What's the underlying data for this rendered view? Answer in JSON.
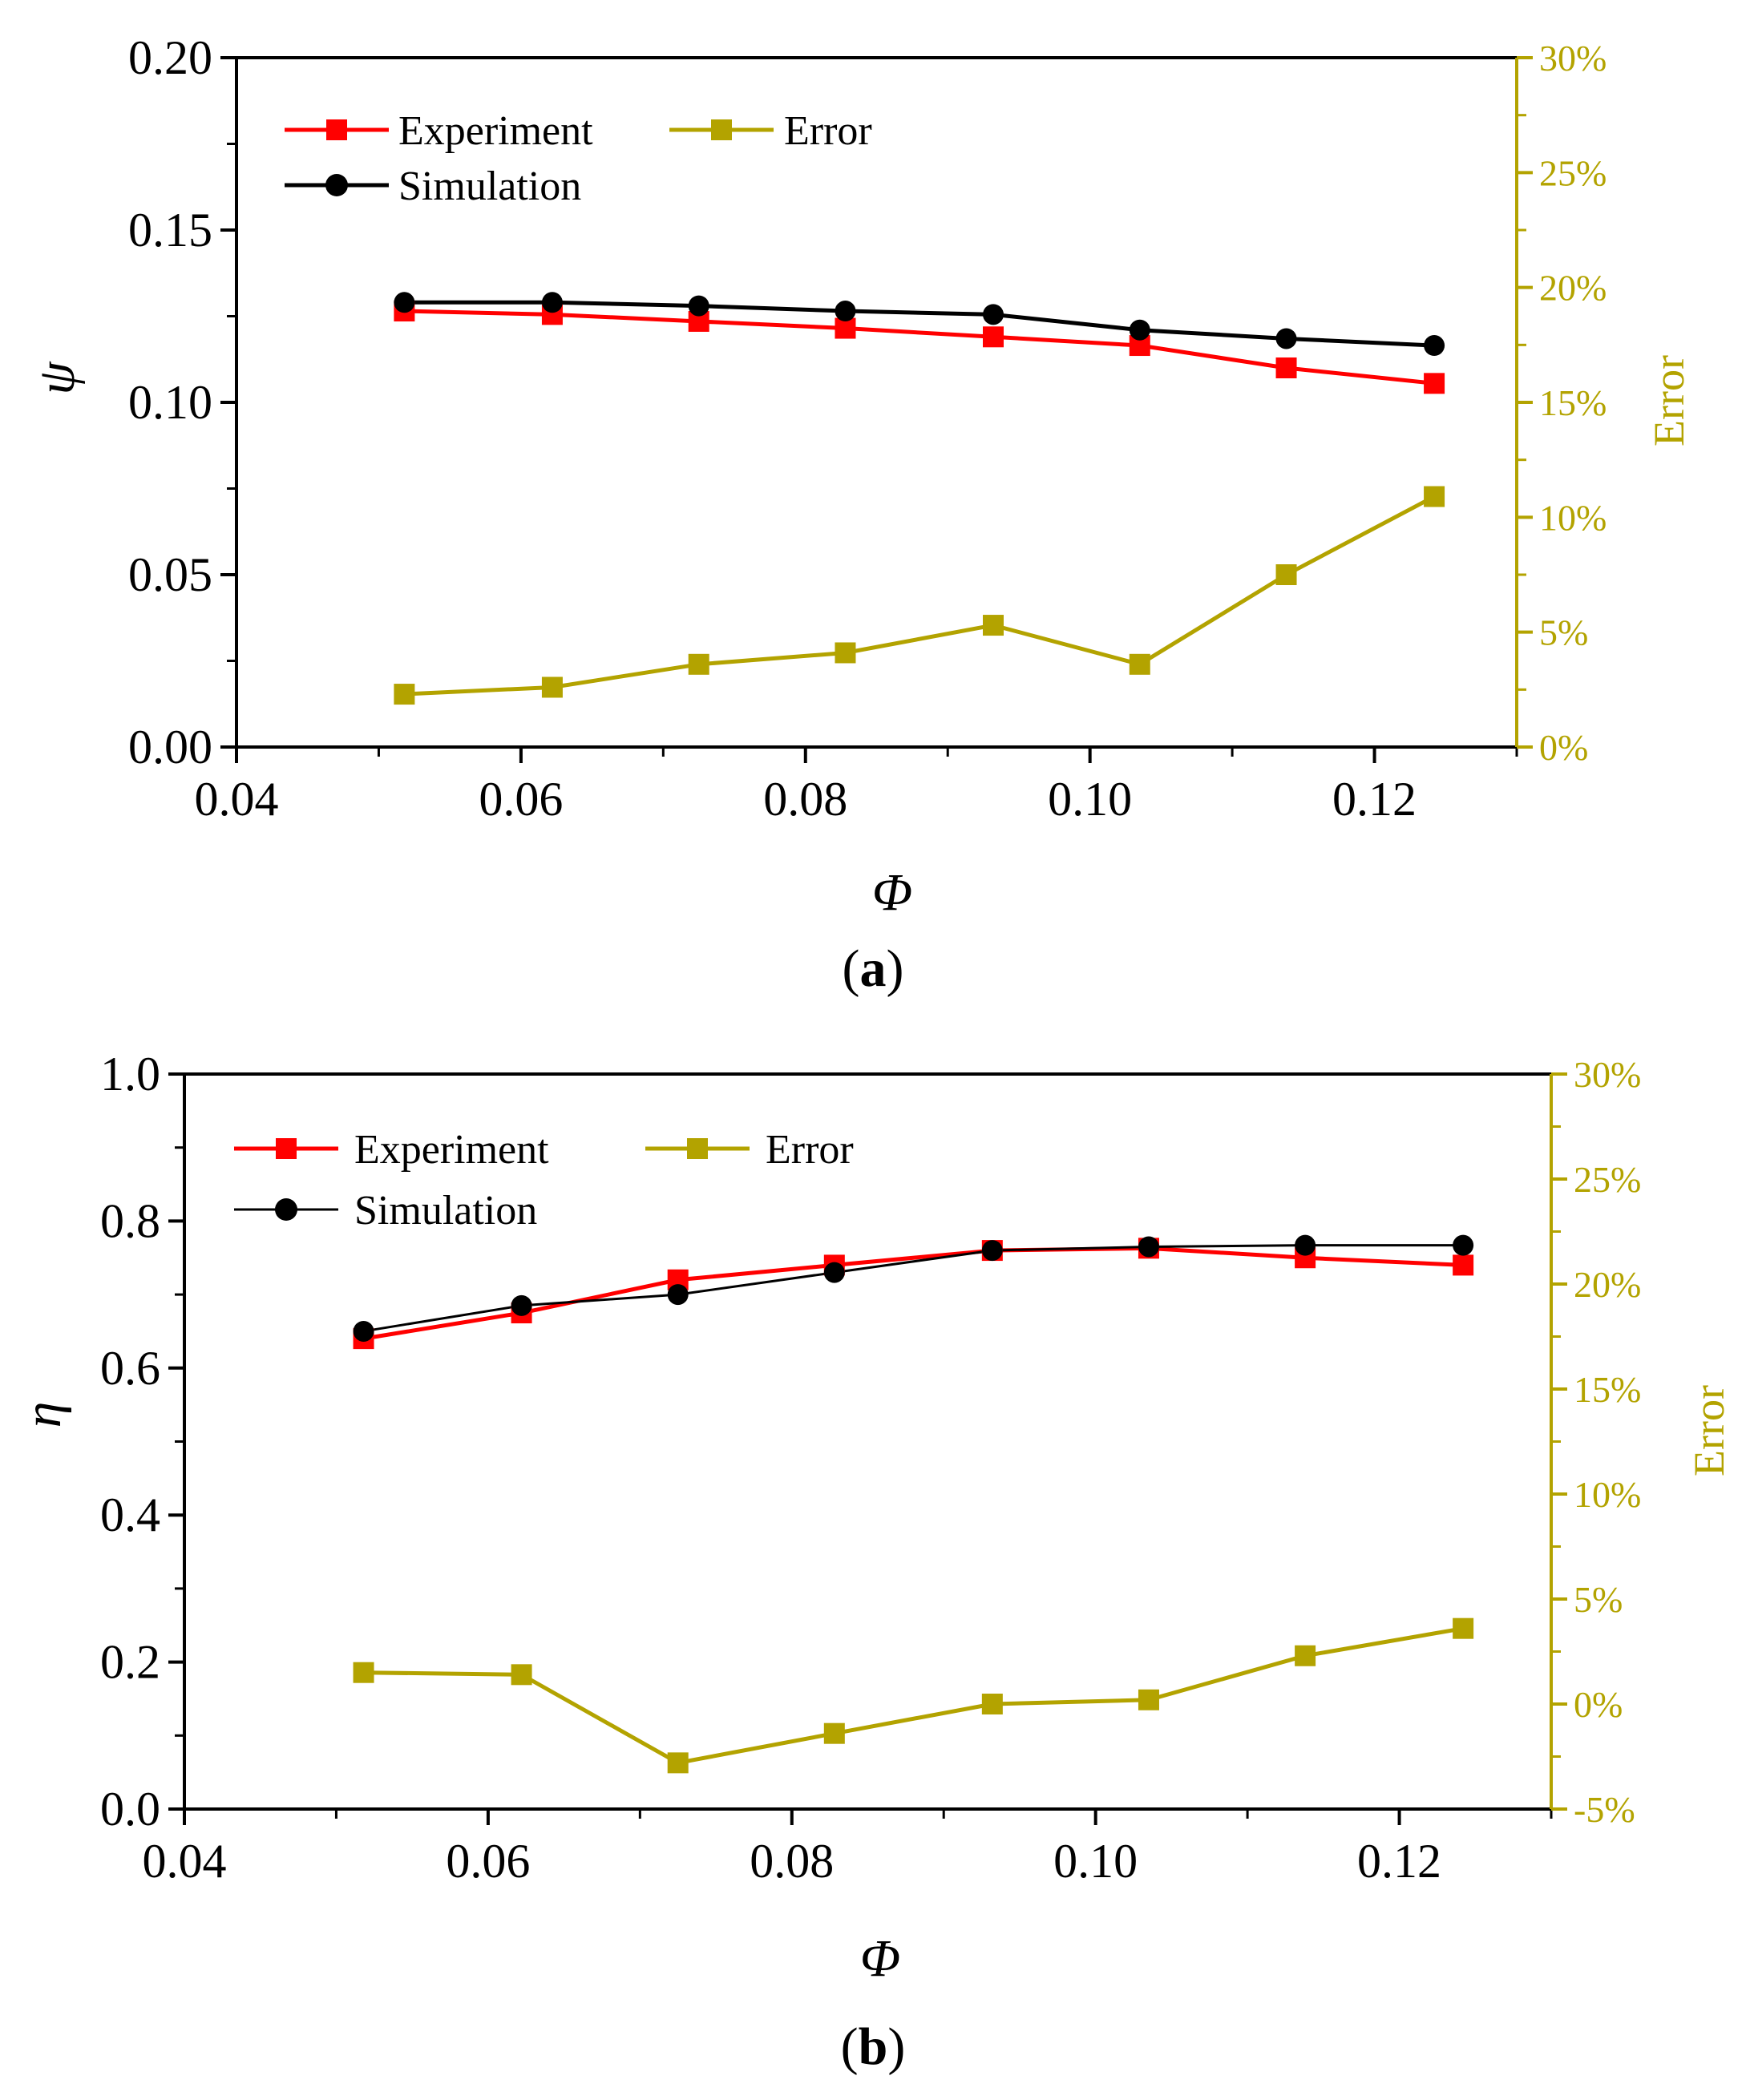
{
  "colors": {
    "experiment": "#ff0000",
    "simulation": "#000000",
    "error": "#b3a300",
    "axis": "#000000"
  },
  "chart_data": [
    {
      "type": "line",
      "panel_label": {
        "open": "(",
        "letter": "a",
        "close": ")"
      },
      "xlabel": "Φ",
      "ylabel": "ψ",
      "y2label": "Error",
      "xlim": [
        0.04,
        0.13
      ],
      "ylim": [
        0,
        0.2
      ],
      "y2lim": [
        0,
        30
      ],
      "xticks": [
        0.04,
        0.06,
        0.08,
        0.1,
        0.12
      ],
      "xtick_labels": [
        "0.04",
        "0.06",
        "0.08",
        "0.10",
        "0.12"
      ],
      "yticks": [
        0,
        0.05,
        0.1,
        0.15,
        0.2
      ],
      "ytick_labels": [
        "0.00",
        "0.05",
        "0.10",
        "0.15",
        "0.20"
      ],
      "y2ticks": [
        0,
        5,
        10,
        15,
        20,
        25,
        30
      ],
      "y2tick_labels": [
        "0%",
        "5%",
        "10%",
        "15%",
        "20%",
        "25%",
        "30%"
      ],
      "legend": {
        "position": "top-left",
        "entries": [
          "Experiment",
          "Error",
          "Simulation"
        ]
      },
      "x": [
        0.0518,
        0.0622,
        0.0725,
        0.0828,
        0.0932,
        0.1035,
        0.1138,
        0.1242
      ],
      "series": [
        {
          "name": "Experiment",
          "axis": "left",
          "marker": "square",
          "color": "#ff0000",
          "values": [
            0.1265,
            0.1255,
            0.1235,
            0.1215,
            0.119,
            0.1165,
            0.11,
            0.1055
          ]
        },
        {
          "name": "Simulation",
          "axis": "left",
          "marker": "circle",
          "color": "#000000",
          "values": [
            0.129,
            0.129,
            0.128,
            0.1265,
            0.1255,
            0.121,
            0.1185,
            0.1165
          ]
        },
        {
          "name": "Error",
          "axis": "right",
          "marker": "square",
          "color": "#b3a300",
          "values": [
            2.3,
            2.6,
            3.6,
            4.1,
            5.3,
            3.6,
            7.5,
            10.9
          ]
        }
      ]
    },
    {
      "type": "line",
      "panel_label": {
        "open": "(",
        "letter": "b",
        "close": ")"
      },
      "xlabel": "Φ",
      "ylabel": "η",
      "y2label": "Error",
      "xlim": [
        0.04,
        0.13
      ],
      "ylim": [
        0,
        1.0
      ],
      "y2lim": [
        -5,
        30
      ],
      "xticks": [
        0.04,
        0.06,
        0.08,
        0.1,
        0.12
      ],
      "xtick_labels": [
        "0.04",
        "0.06",
        "0.08",
        "0.10",
        "0.12"
      ],
      "yticks": [
        0,
        0.2,
        0.4,
        0.6,
        0.8,
        1.0
      ],
      "ytick_labels": [
        "0.0",
        "0.2",
        "0.4",
        "0.6",
        "0.8",
        "1.0"
      ],
      "y2ticks": [
        -5,
        0,
        5,
        10,
        15,
        20,
        25,
        30
      ],
      "y2tick_labels": [
        "-5%",
        "0%",
        "5%",
        "10%",
        "15%",
        "20%",
        "25%",
        "30%"
      ],
      "legend": {
        "position": "top-left",
        "entries": [
          "Experiment",
          "Error",
          "Simulation"
        ]
      },
      "x": [
        0.0518,
        0.0622,
        0.0725,
        0.0828,
        0.0932,
        0.1035,
        0.1138,
        0.1242
      ],
      "series": [
        {
          "name": "Experiment",
          "axis": "left",
          "marker": "square",
          "color": "#ff0000",
          "values": [
            0.64,
            0.675,
            0.72,
            0.74,
            0.76,
            0.763,
            0.75,
            0.74
          ]
        },
        {
          "name": "Simulation",
          "axis": "left",
          "marker": "circle",
          "color": "#000000",
          "values": [
            0.65,
            0.685,
            0.7,
            0.73,
            0.76,
            0.765,
            0.767,
            0.767
          ]
        },
        {
          "name": "Error",
          "axis": "right",
          "marker": "square",
          "color": "#b3a300",
          "values": [
            1.5,
            1.4,
            -2.8,
            -1.4,
            0.0,
            0.2,
            2.3,
            3.6
          ]
        }
      ]
    }
  ]
}
